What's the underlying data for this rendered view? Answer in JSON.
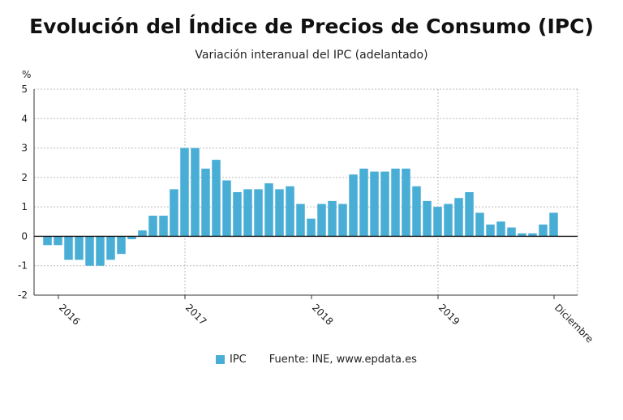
{
  "title": "Evolución del Índice de Precios de Consumo (IPC)",
  "subtitle": "Variación interanual del IPC (adelantado)",
  "source": "Fuente: INE, www.epdata.es",
  "colors": {
    "bar": "#49aed6",
    "grid": "#bbbbbb",
    "axis": "#333333"
  },
  "chart_data": {
    "type": "bar",
    "ylabel": "%",
    "ylim": [
      -2,
      5
    ],
    "yticks": [
      -2,
      -1,
      0,
      1,
      2,
      3,
      4,
      5
    ],
    "grid": true,
    "legend_position": "bottom",
    "xtick_labels": [
      "2016",
      "2017",
      "2018",
      "2019",
      "Diciembre"
    ],
    "xtick_indices": [
      1.5,
      13.5,
      25.5,
      37.5,
      48.5
    ],
    "series": [
      {
        "name": "IPC",
        "values": [
          -0.3,
          -0.3,
          -0.8,
          -0.8,
          -1.0,
          -1.0,
          -0.8,
          -0.6,
          -0.1,
          0.2,
          0.7,
          0.7,
          1.6,
          3.0,
          3.0,
          2.3,
          2.6,
          1.9,
          1.5,
          1.6,
          1.6,
          1.8,
          1.6,
          1.7,
          1.1,
          0.6,
          1.1,
          1.2,
          1.1,
          2.1,
          2.3,
          2.2,
          2.2,
          2.3,
          2.3,
          1.7,
          1.2,
          1.0,
          1.1,
          1.3,
          1.5,
          0.8,
          0.4,
          0.5,
          0.3,
          0.1,
          0.1,
          0.4,
          0.8
        ]
      }
    ]
  }
}
